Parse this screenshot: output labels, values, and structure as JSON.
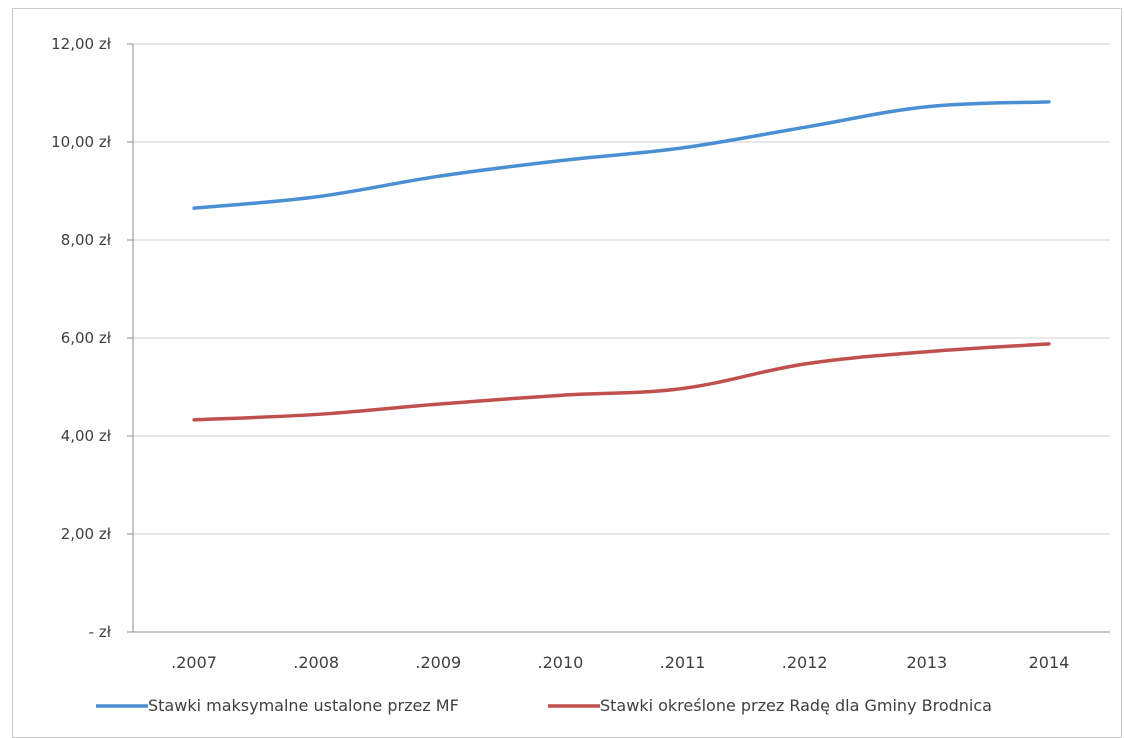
{
  "chart_data": {
    "type": "line",
    "categories": [
      ".2007",
      ".2008",
      ".2009",
      ".2010",
      ".2011",
      ".2012",
      "2013",
      "2014"
    ],
    "y_ticks": [
      "-  zł",
      "2,00 zł",
      "4,00 zł",
      "6,00 zł",
      "8,00 zł",
      "10,00 zł",
      "12,00 zł"
    ],
    "ylim": [
      0,
      12
    ],
    "grid": true,
    "legend_position": "bottom",
    "series": [
      {
        "name": "Stawki maksymalne ustalone przez MF",
        "color": "#4a8fd4",
        "values": [
          8.65,
          8.88,
          9.3,
          9.62,
          9.88,
          10.3,
          10.72,
          10.82
        ]
      },
      {
        "name": "Stawki określone przez Radę dla Gminy Brodnica",
        "color": "#c0504d",
        "values": [
          4.33,
          4.44,
          4.65,
          4.83,
          4.97,
          5.47,
          5.72,
          5.88
        ]
      }
    ]
  }
}
